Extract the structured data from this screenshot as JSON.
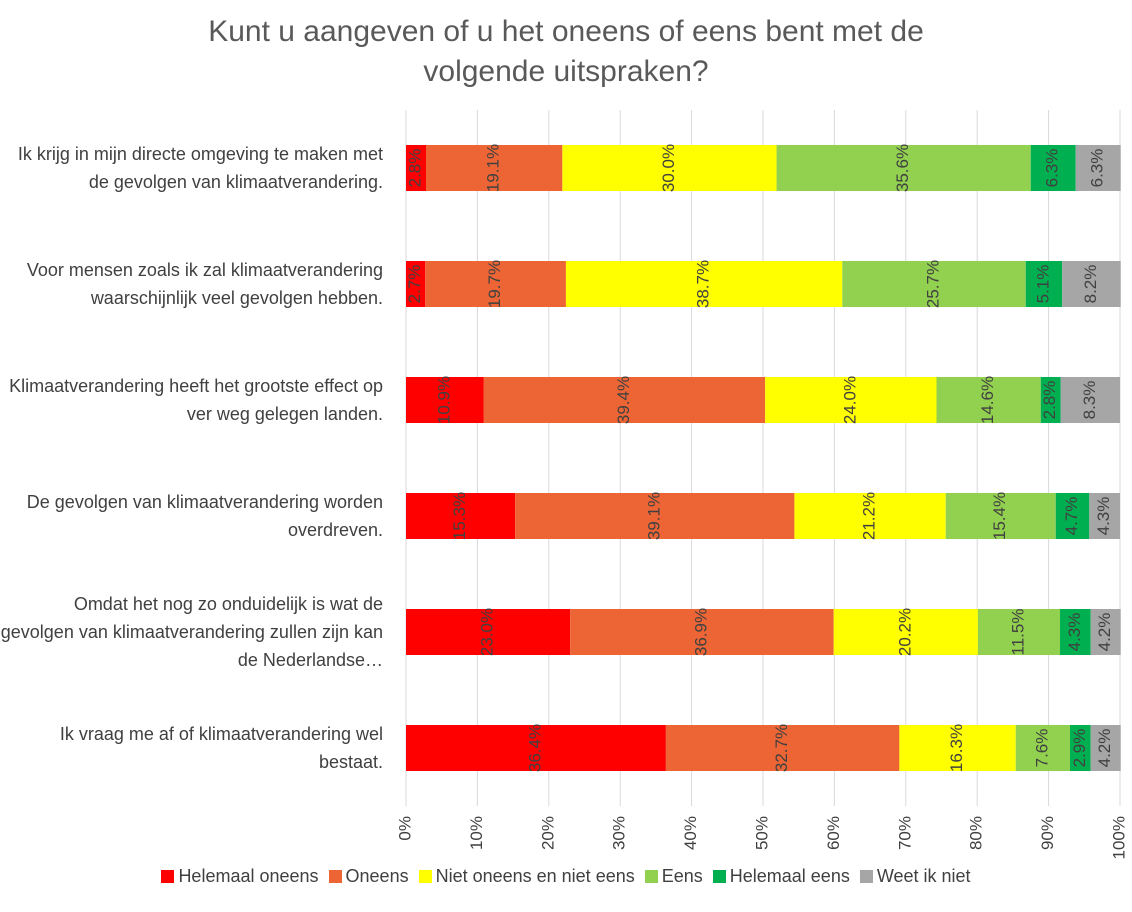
{
  "chart_data": {
    "type": "stacked-bar-horizontal",
    "title": "Kunt u aangeven of u het oneens of eens bent met de volgende uitspraken?",
    "categories": [
      "Ik krijg in mijn directe omgeving te maken met de gevolgen van klimaatverandering.",
      "Voor mensen zoals ik zal klimaatverandering waarschijnlijk veel gevolgen hebben.",
      "Klimaatverandering heeft het grootste effect op ver weg gelegen landen.",
      "De gevolgen van klimaatverandering worden overdreven.",
      "Omdat het nog zo onduidelijk is wat de gevolgen van klimaatverandering zullen zijn kan de Nederlandse…",
      "Ik vraag me af of klimaatverandering wel bestaat."
    ],
    "series": [
      {
        "name": "Helemaal oneens",
        "color": "#ff0000",
        "values": [
          2.8,
          2.7,
          10.9,
          15.3,
          23.0,
          36.4
        ],
        "value_labels": [
          "2.8%",
          "2.7%",
          "10.9%",
          "15.3%",
          "23.0%",
          "36.4%"
        ]
      },
      {
        "name": "Oneens",
        "color": "#ed6535",
        "values": [
          19.1,
          19.7,
          39.4,
          39.1,
          36.9,
          32.7
        ],
        "value_labels": [
          "19.1%",
          "19.7%",
          "39.4%",
          "39.1%",
          "36.9%",
          "32.7%"
        ]
      },
      {
        "name": "Niet oneens en niet eens",
        "color": "#ffff00",
        "values": [
          30.0,
          38.7,
          24.0,
          21.2,
          20.2,
          16.3
        ],
        "value_labels": [
          "30.0%",
          "38.7%",
          "24.0%",
          "21.2%",
          "20.2%",
          "16.3%"
        ]
      },
      {
        "name": "Eens",
        "color": "#92d050",
        "values": [
          35.6,
          25.7,
          14.6,
          15.4,
          11.5,
          7.6
        ],
        "value_labels": [
          "35.6%",
          "25.7%",
          "14.6%",
          "15.4%",
          "11.5%",
          "7.6%"
        ]
      },
      {
        "name": "Helemaal eens",
        "color": "#00b050",
        "values": [
          6.3,
          5.1,
          2.8,
          4.7,
          4.3,
          2.9
        ],
        "value_labels": [
          "6.3%",
          "5.1%",
          "2.8%",
          "4.7%",
          "4.3%",
          "2.9%"
        ]
      },
      {
        "name": "Weet ik niet",
        "color": "#a6a6a6",
        "values": [
          6.3,
          8.2,
          8.3,
          4.3,
          4.2,
          4.2
        ],
        "value_labels": [
          "6.3%",
          "8.2%",
          "8.3%",
          "4.3%",
          "4.2%",
          "4.2%"
        ]
      }
    ],
    "xlim": [
      0,
      100
    ],
    "xticks": [
      {
        "value": 0,
        "label": "0%"
      },
      {
        "value": 10,
        "label": "10%"
      },
      {
        "value": 20,
        "label": "20%"
      },
      {
        "value": 30,
        "label": "30%"
      },
      {
        "value": 40,
        "label": "40%"
      },
      {
        "value": 50,
        "label": "50%"
      },
      {
        "value": 60,
        "label": "60%"
      },
      {
        "value": 70,
        "label": "70%"
      },
      {
        "value": 80,
        "label": "80%"
      },
      {
        "value": 90,
        "label": "90%"
      },
      {
        "value": 100,
        "label": "100%"
      }
    ],
    "grid": true,
    "legend": "bottom"
  }
}
